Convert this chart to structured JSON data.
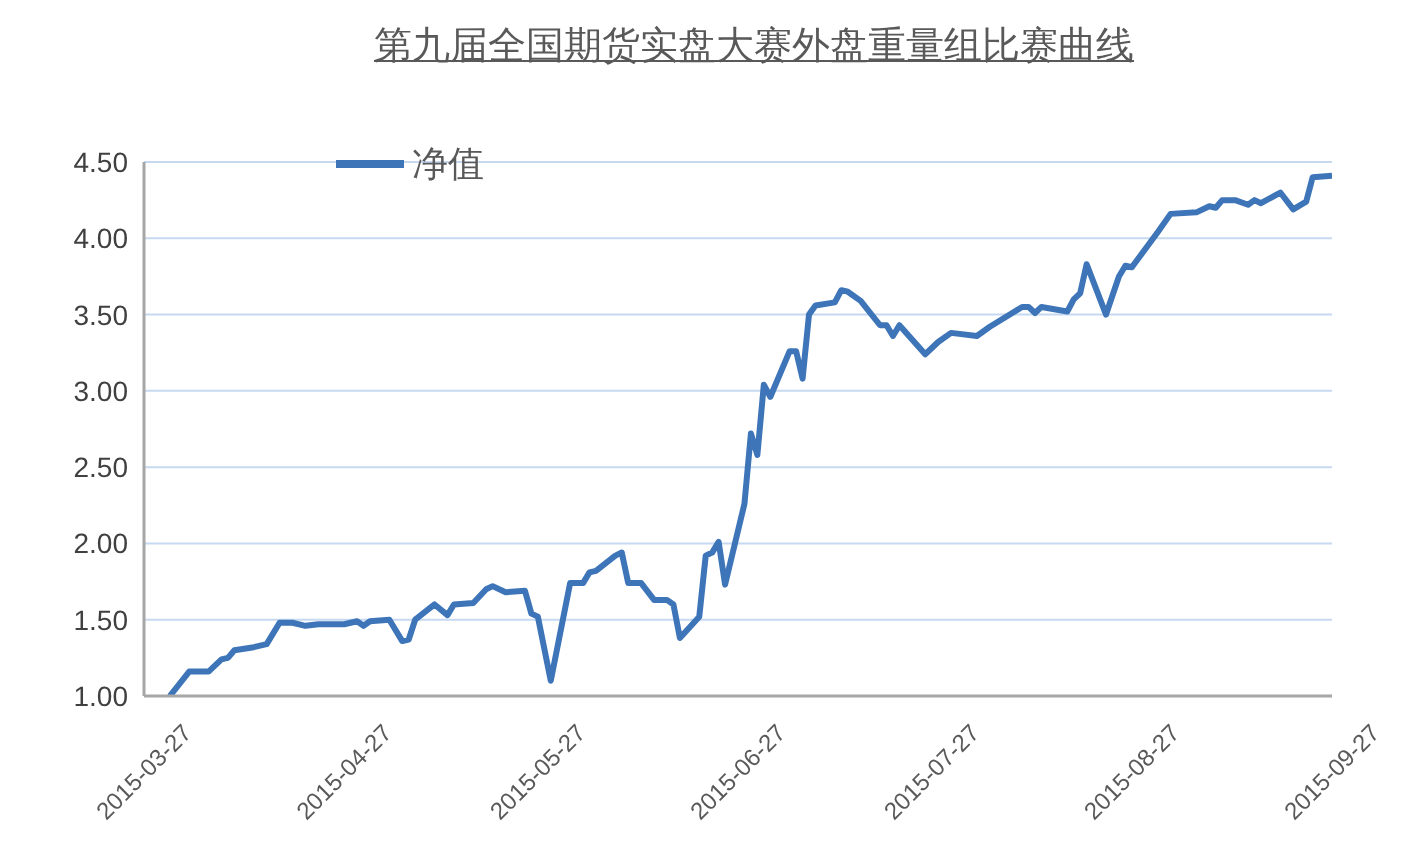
{
  "chart_data": {
    "type": "line",
    "title": "第九届全国期货实盘大赛外盘重量组比赛曲线",
    "x": [
      "2015-03-31",
      "2015-04-03",
      "2015-04-06",
      "2015-04-08",
      "2015-04-09",
      "2015-04-10",
      "2015-04-13",
      "2015-04-15",
      "2015-04-17",
      "2015-04-19",
      "2015-04-21",
      "2015-04-23",
      "2015-04-27",
      "2015-04-29",
      "2015-04-30",
      "2015-05-01",
      "2015-05-04",
      "2015-05-06",
      "2015-05-07",
      "2015-05-08",
      "2015-05-11",
      "2015-05-13",
      "2015-05-14",
      "2015-05-17",
      "2015-05-19",
      "2015-05-20",
      "2015-05-22",
      "2015-05-25",
      "2015-05-26",
      "2015-05-27",
      "2015-05-29",
      "2015-06-01",
      "2015-06-03",
      "2015-06-04",
      "2015-06-05",
      "2015-06-08",
      "2015-06-09",
      "2015-06-10",
      "2015-06-12",
      "2015-06-14",
      "2015-06-16",
      "2015-06-17",
      "2015-06-18",
      "2015-06-21",
      "2015-06-22",
      "2015-06-23",
      "2015-06-24",
      "2015-06-25",
      "2015-06-28",
      "2015-06-29",
      "2015-06-30",
      "2015-07-01",
      "2015-07-02",
      "2015-07-05",
      "2015-07-06",
      "2015-07-07",
      "2015-07-08",
      "2015-07-09",
      "2015-07-12",
      "2015-07-13",
      "2015-07-14",
      "2015-07-16",
      "2015-07-19",
      "2015-07-20",
      "2015-07-21",
      "2015-07-22",
      "2015-07-26",
      "2015-07-28",
      "2015-07-30",
      "2015-08-03",
      "2015-08-05",
      "2015-08-10",
      "2015-08-11",
      "2015-08-12",
      "2015-08-13",
      "2015-08-17",
      "2015-08-18",
      "2015-08-19",
      "2015-08-20",
      "2015-08-23",
      "2015-08-25",
      "2015-08-26",
      "2015-08-27",
      "2015-08-31",
      "2015-09-02",
      "2015-09-06",
      "2015-09-08",
      "2015-09-09",
      "2015-09-10",
      "2015-09-12",
      "2015-09-14",
      "2015-09-15",
      "2015-09-16",
      "2015-09-19",
      "2015-09-21",
      "2015-09-23",
      "2015-09-24",
      "2015-09-27"
    ],
    "series": [
      {
        "name": "净值",
        "color": "#3e75b9",
        "values": [
          1.0,
          1.16,
          1.16,
          1.24,
          1.25,
          1.3,
          1.32,
          1.34,
          1.48,
          1.48,
          1.46,
          1.47,
          1.47,
          1.49,
          1.46,
          1.49,
          1.5,
          1.36,
          1.37,
          1.5,
          1.6,
          1.53,
          1.6,
          1.61,
          1.7,
          1.72,
          1.68,
          1.69,
          1.54,
          1.52,
          1.1,
          1.74,
          1.74,
          1.81,
          1.82,
          1.92,
          1.94,
          1.74,
          1.74,
          1.63,
          1.63,
          1.6,
          1.38,
          1.52,
          1.92,
          1.94,
          2.01,
          1.73,
          2.26,
          2.72,
          2.58,
          3.04,
          2.96,
          3.26,
          3.26,
          3.08,
          3.5,
          3.56,
          3.58,
          3.66,
          3.65,
          3.59,
          3.43,
          3.43,
          3.36,
          3.43,
          3.24,
          3.32,
          3.38,
          3.36,
          3.42,
          3.55,
          3.55,
          3.51,
          3.55,
          3.52,
          3.6,
          3.64,
          3.83,
          3.5,
          3.75,
          3.82,
          3.81,
          4.04,
          4.16,
          4.17,
          4.21,
          4.2,
          4.25,
          4.25,
          4.22,
          4.25,
          4.23,
          4.3,
          4.19,
          4.24,
          4.4,
          4.41
        ]
      }
    ],
    "xlim": [
      "2015-03-27",
      "2015-09-27"
    ],
    "xticks": [
      "2015-03-27",
      "2015-04-27",
      "2015-05-27",
      "2015-06-27",
      "2015-07-27",
      "2015-08-27",
      "2015-09-27"
    ],
    "ylim": [
      1,
      4.5
    ],
    "yticks": [
      {
        "value": 1,
        "label": "1.00"
      },
      {
        "value": 1.5,
        "label": "1.50"
      },
      {
        "value": 2,
        "label": "2.00"
      },
      {
        "value": 2.5,
        "label": "2.50"
      },
      {
        "value": 3,
        "label": "3.00"
      },
      {
        "value": 3.5,
        "label": "3.50"
      },
      {
        "value": 4,
        "label": "4.00"
      },
      {
        "value": 4.5,
        "label": "4.50"
      }
    ],
    "grid": "y",
    "legend": "top left",
    "marker": "none",
    "line_style": "solid"
  }
}
